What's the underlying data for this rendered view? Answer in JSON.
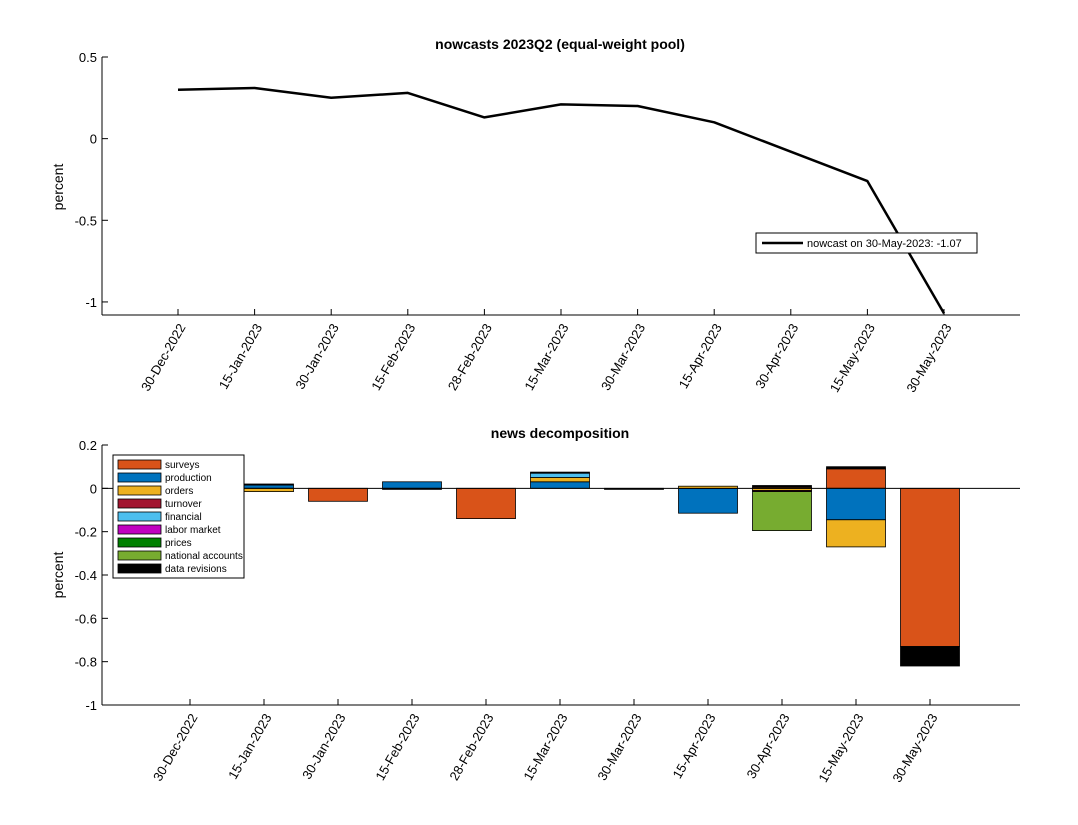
{
  "chart_data": [
    {
      "type": "line",
      "title": "nowcasts 2023Q2 (equal-weight pool)",
      "xlabel": "",
      "ylabel": "percent",
      "ylim": [
        -1.08,
        0.5
      ],
      "yticks": [
        "0.5",
        "0",
        "-0.5",
        "-1"
      ],
      "x": [
        "30-Dec-2022",
        "15-Jan-2023",
        "30-Jan-2023",
        "15-Feb-2023",
        "28-Feb-2023",
        "15-Mar-2023",
        "30-Mar-2023",
        "15-Apr-2023",
        "30-Apr-2023",
        "15-May-2023",
        "30-May-2023"
      ],
      "series": [
        {
          "name": "nowcast on 30-May-2023: -1.07",
          "values": [
            0.3,
            0.31,
            0.25,
            0.28,
            0.13,
            0.21,
            0.2,
            0.1,
            -0.08,
            -0.26,
            -1.07
          ]
        }
      ],
      "legend_position": "right",
      "colors": {
        "line": "#000000"
      }
    },
    {
      "type": "bar",
      "stacked": true,
      "title": "news decomposition",
      "xlabel": "",
      "ylabel": "percent",
      "ylim": [
        -1,
        0.2
      ],
      "yticks": [
        "0.2",
        "0",
        "-0.2",
        "-0.4",
        "-0.6",
        "-0.8",
        "-1"
      ],
      "categories": [
        "30-Dec-2022",
        "15-Jan-2023",
        "30-Jan-2023",
        "15-Feb-2023",
        "28-Feb-2023",
        "15-Mar-2023",
        "30-Mar-2023",
        "15-Apr-2023",
        "30-Apr-2023",
        "15-May-2023",
        "30-May-2023"
      ],
      "legend_position": "top-left",
      "series": [
        {
          "name": "surveys",
          "color": "#D95319",
          "values": [
            0,
            0,
            -0.06,
            0,
            -0.14,
            0,
            0,
            0,
            0.005,
            0.09,
            -0.73
          ]
        },
        {
          "name": "production",
          "color": "#0072BD",
          "values": [
            0,
            0.015,
            0,
            0.03,
            0,
            0.03,
            0,
            -0.115,
            0,
            -0.145,
            0
          ]
        },
        {
          "name": "orders",
          "color": "#EDB120",
          "values": [
            0,
            -0.015,
            0,
            0,
            0,
            0.02,
            0,
            0.01,
            -0.01,
            -0.125,
            0
          ]
        },
        {
          "name": "turnover",
          "color": "#A2142F",
          "values": [
            0,
            0,
            0,
            0,
            0,
            0,
            0,
            0,
            -0.005,
            0,
            0
          ]
        },
        {
          "name": "financial",
          "color": "#4DBEEE",
          "values": [
            0,
            0,
            0,
            0,
            0,
            0.02,
            0,
            0,
            0,
            0,
            0
          ]
        },
        {
          "name": "labor market",
          "color": "#C000C0",
          "values": [
            0,
            0,
            0,
            0,
            0,
            0,
            0,
            0,
            0,
            0,
            0
          ]
        },
        {
          "name": "prices",
          "color": "#008000",
          "values": [
            0,
            0,
            0,
            0,
            0,
            0,
            0,
            0,
            0,
            0,
            0
          ]
        },
        {
          "name": "national accounts",
          "color": "#77AC30",
          "values": [
            0,
            0,
            0,
            0,
            0,
            0,
            0,
            0,
            -0.18,
            0,
            0
          ]
        },
        {
          "name": "data revisions",
          "color": "#000000",
          "values": [
            0,
            0.005,
            0,
            -0.005,
            0,
            0.005,
            -0.005,
            0,
            0.008,
            0.01,
            -0.09
          ]
        }
      ]
    }
  ]
}
